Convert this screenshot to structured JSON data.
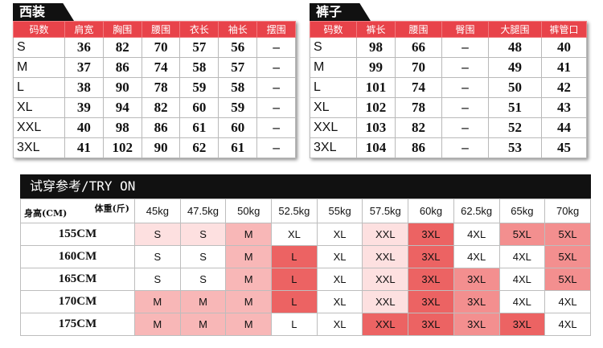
{
  "suit": {
    "title": "西装",
    "headers": [
      "码数",
      "肩宽",
      "胸围",
      "腰围",
      "衣长",
      "袖长",
      "摆围"
    ],
    "rows": [
      [
        "S",
        "36",
        "82",
        "70",
        "57",
        "56",
        "–"
      ],
      [
        "M",
        "37",
        "86",
        "74",
        "58",
        "57",
        "–"
      ],
      [
        "L",
        "38",
        "90",
        "78",
        "59",
        "58",
        "–"
      ],
      [
        "XL",
        "39",
        "94",
        "82",
        "60",
        "59",
        "–"
      ],
      [
        "XXL",
        "40",
        "98",
        "86",
        "61",
        "60",
        "–"
      ],
      [
        "3XL",
        "41",
        "102",
        "90",
        "62",
        "61",
        "–"
      ]
    ]
  },
  "pants": {
    "title": "裤子",
    "headers": [
      "码数",
      "裤长",
      "腰围",
      "臀围",
      "大腿围",
      "裤管口"
    ],
    "rows": [
      [
        "S",
        "98",
        "66",
        "–",
        "48",
        "40"
      ],
      [
        "M",
        "99",
        "70",
        "–",
        "49",
        "41"
      ],
      [
        "L",
        "101",
        "74",
        "–",
        "50",
        "42"
      ],
      [
        "XL",
        "102",
        "78",
        "–",
        "51",
        "43"
      ],
      [
        "XXL",
        "103",
        "82",
        "–",
        "52",
        "44"
      ],
      [
        "3XL",
        "104",
        "86",
        "–",
        "53",
        "45"
      ]
    ]
  },
  "tryon": {
    "title": "试穿参考/TRY ON",
    "corner_weight": "体重(斤)",
    "corner_height": "身高(CM)",
    "weights": [
      "45kg",
      "47.5kg",
      "50kg",
      "52.5kg",
      "55kg",
      "57.5kg",
      "60kg",
      "62.5kg",
      "65kg",
      "70kg"
    ],
    "rows": [
      {
        "height": "155CM",
        "sizes": [
          "S",
          "S",
          "M",
          "XL",
          "XL",
          "XXL",
          "3XL",
          "4XL",
          "5XL",
          "5XL"
        ]
      },
      {
        "height": "160CM",
        "sizes": [
          "S",
          "S",
          "M",
          "L",
          "XL",
          "XXL",
          "3XL",
          "4XL",
          "4XL",
          "5XL"
        ]
      },
      {
        "height": "165CM",
        "sizes": [
          "S",
          "S",
          "M",
          "L",
          "XL",
          "XXL",
          "3XL",
          "3XL",
          "4XL",
          "5XL"
        ]
      },
      {
        "height": "170CM",
        "sizes": [
          "M",
          "M",
          "M",
          "L",
          "XL",
          "XXL",
          "3XL",
          "3XL",
          "4XL",
          "4XL"
        ]
      },
      {
        "height": "175CM",
        "sizes": [
          "M",
          "M",
          "M",
          "L",
          "XL",
          "XXL",
          "3XL",
          "3XL",
          "3XL",
          "4XL"
        ]
      }
    ],
    "shading": [
      [
        1,
        1,
        2,
        0,
        0,
        1,
        4,
        0,
        3,
        3
      ],
      [
        0,
        0,
        2,
        4,
        0,
        1,
        4,
        0,
        0,
        3
      ],
      [
        0,
        0,
        2,
        4,
        0,
        1,
        4,
        3,
        0,
        3
      ],
      [
        2,
        2,
        2,
        4,
        0,
        1,
        4,
        3,
        0,
        0
      ],
      [
        2,
        2,
        2,
        0,
        0,
        4,
        4,
        3,
        4,
        0
      ]
    ],
    "colors": [
      "#ffffff",
      "#fde0e0",
      "#f8b7b7",
      "#f38f8f",
      "#ec6363"
    ]
  }
}
